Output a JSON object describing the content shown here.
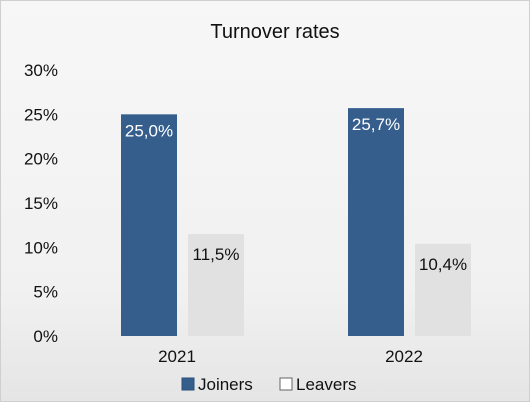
{
  "chart_data": {
    "type": "bar",
    "title": "Turnover rates",
    "categories": [
      "2021",
      "2022"
    ],
    "series": [
      {
        "name": "Joiners",
        "values": [
          25.0,
          25.7
        ],
        "labels": [
          "25,0%",
          "25,7%"
        ],
        "color": "#355e8d",
        "label_color": "#ffffff"
      },
      {
        "name": "Leavers",
        "values": [
          11.5,
          10.4
        ],
        "labels": [
          "11,5%",
          "10,4%"
        ],
        "color": "#e1e1e1",
        "label_color": "#111111"
      }
    ],
    "ylim": [
      0,
      30
    ],
    "y_ticks": [
      0,
      5,
      10,
      15,
      20,
      25,
      30
    ],
    "y_tick_labels": [
      "0%",
      "5%",
      "10%",
      "15%",
      "20%",
      "25%",
      "30%"
    ],
    "legend_position": "bottom",
    "grid": false
  }
}
